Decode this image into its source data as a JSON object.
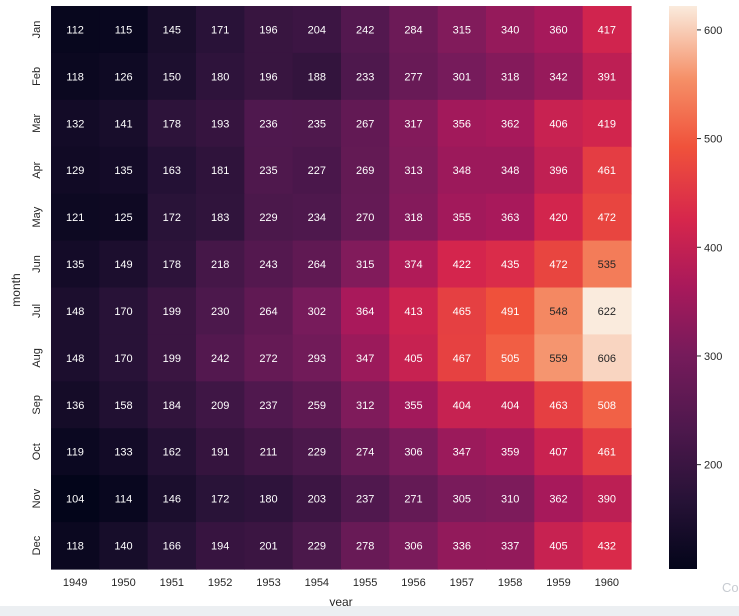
{
  "chart_data": {
    "type": "heatmap",
    "xlabel": "year",
    "ylabel": "month",
    "x_categories": [
      "1949",
      "1950",
      "1951",
      "1952",
      "1953",
      "1954",
      "1955",
      "1956",
      "1957",
      "1958",
      "1959",
      "1960"
    ],
    "y_categories": [
      "Jan",
      "Feb",
      "Mar",
      "Apr",
      "May",
      "Jun",
      "Jul",
      "Aug",
      "Sep",
      "Oct",
      "Nov",
      "Dec"
    ],
    "values": [
      [
        112,
        115,
        145,
        171,
        196,
        204,
        242,
        284,
        315,
        340,
        360,
        417
      ],
      [
        118,
        126,
        150,
        180,
        196,
        188,
        233,
        277,
        301,
        318,
        342,
        391
      ],
      [
        132,
        141,
        178,
        193,
        236,
        235,
        267,
        317,
        356,
        362,
        406,
        419
      ],
      [
        129,
        135,
        163,
        181,
        235,
        227,
        269,
        313,
        348,
        348,
        396,
        461
      ],
      [
        121,
        125,
        172,
        183,
        229,
        234,
        270,
        318,
        355,
        363,
        420,
        472
      ],
      [
        135,
        149,
        178,
        218,
        243,
        264,
        315,
        374,
        422,
        435,
        472,
        535
      ],
      [
        148,
        170,
        199,
        230,
        264,
        302,
        364,
        413,
        465,
        491,
        548,
        622
      ],
      [
        148,
        170,
        199,
        242,
        272,
        293,
        347,
        405,
        467,
        505,
        559,
        606
      ],
      [
        136,
        158,
        184,
        209,
        237,
        259,
        312,
        355,
        404,
        404,
        463,
        508
      ],
      [
        119,
        133,
        162,
        191,
        211,
        229,
        274,
        306,
        347,
        359,
        407,
        461
      ],
      [
        104,
        114,
        146,
        172,
        180,
        203,
        237,
        271,
        305,
        310,
        362,
        390
      ],
      [
        118,
        140,
        166,
        194,
        201,
        229,
        278,
        306,
        336,
        337,
        405,
        432
      ]
    ],
    "colormap": "rocket",
    "vmin": 104,
    "vmax": 622,
    "colorbar_ticks": [
      200,
      300,
      400,
      500,
      600
    ],
    "annotations": true
  },
  "corner_text": "Co"
}
